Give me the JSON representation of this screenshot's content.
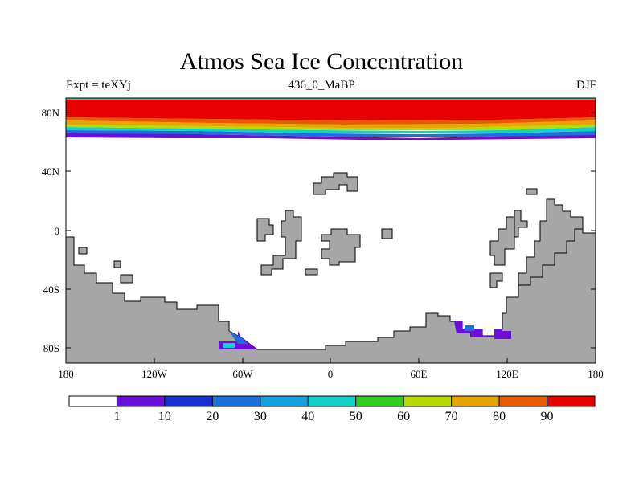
{
  "title": "Atmos Sea Ice Concentration",
  "subtitle_left": "Expt = teXYj",
  "subtitle_center": "436_0_MaBP",
  "subtitle_right": "DJF",
  "y_ticks": [
    "80N",
    "40N",
    "0",
    "40S",
    "80S"
  ],
  "x_ticks": [
    "180",
    "120W",
    "60W",
    "0",
    "60E",
    "120E",
    "180"
  ],
  "colorbar": {
    "colors": [
      "#ffffff",
      "#6a0fd8",
      "#1432d2",
      "#1f6fd8",
      "#15a3e0",
      "#10d2c8",
      "#33cc22",
      "#b8dc00",
      "#e6a500",
      "#e65a00",
      "#e60000"
    ],
    "labels": [
      "1",
      "10",
      "20",
      "30",
      "40",
      "50",
      "60",
      "70",
      "80",
      "90"
    ]
  },
  "colors": {
    "land": "#a6a6a6",
    "ice_full": "#e60000"
  }
}
